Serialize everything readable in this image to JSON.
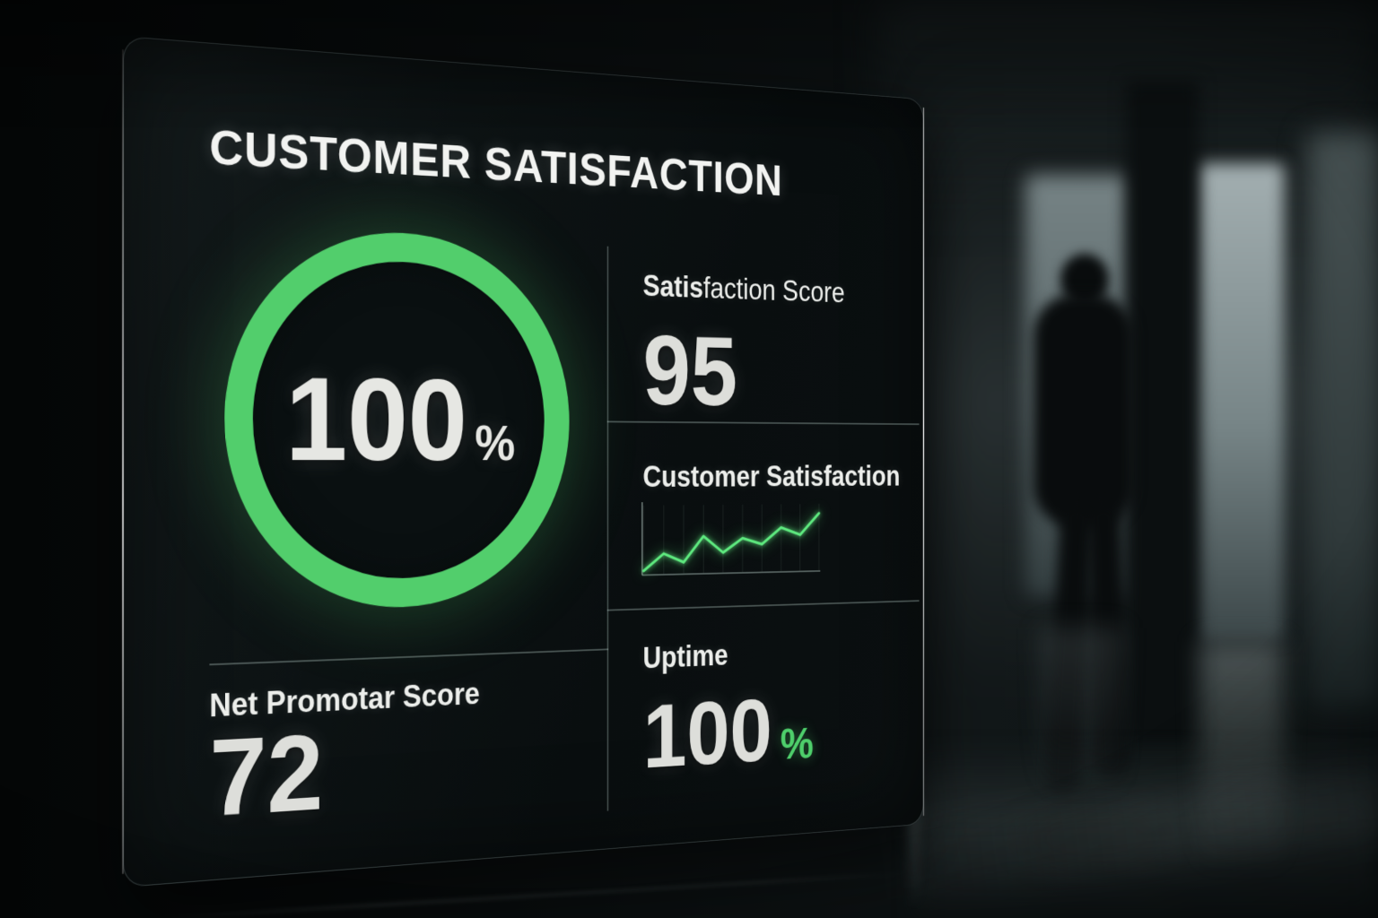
{
  "colors": {
    "accent_green": "#52ce6c",
    "chart_line_green": "#5ee97f",
    "uptime_percent_green": "#4ecf6b"
  },
  "panel": {
    "title": "CUSTOMER SATISFACTION",
    "gauge": {
      "value": "100",
      "unit": "%"
    },
    "satisfaction_score": {
      "label_bold": "Satis",
      "label_rest": "faction Score",
      "value": "95"
    },
    "trend": {
      "label": "Customer Satisfaction"
    },
    "nps": {
      "label": "Net Promotar Score",
      "value": "72"
    },
    "uptime": {
      "label": "Uptime",
      "value": "100",
      "unit": "%"
    }
  },
  "chart_data": [
    {
      "type": "gauge",
      "value": 100,
      "max": 100,
      "unit": "%",
      "ring_color": "#52ce6c"
    },
    {
      "type": "line",
      "title": "Customer Satisfaction",
      "x": [
        1,
        2,
        3,
        4,
        5,
        6,
        7,
        8,
        9,
        10
      ],
      "values": [
        4,
        30,
        16,
        56,
        30,
        52,
        42,
        68,
        56,
        90
      ],
      "ylim": [
        0,
        100
      ],
      "xlabel": "",
      "ylabel": "",
      "grid": "vertical",
      "legend": "none",
      "line_color": "#5ee97f"
    }
  ]
}
